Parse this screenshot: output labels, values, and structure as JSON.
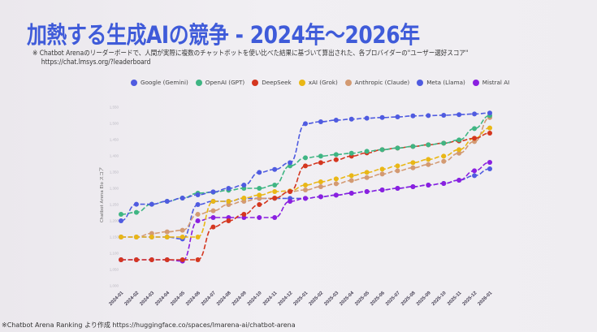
{
  "slide": {
    "title": "加熱する生成AIの競争 - 2024年〜2026年",
    "note_line1": "※ Chatbot Arenaのリーダーボードで、人間が実際に複数のチャットボットを使い比べた結果に基づいて算出された、各プロバイダーの\"ユーザー選好スコア\"",
    "note_line2": "https://chat.lmsys.org/?leaderboard",
    "footer": "※Chatbot Arena Ranking より作成 https://huggingface.co/spaces/lmarena-ai/chatbot-arena"
  },
  "chart_data": {
    "type": "line",
    "title": "",
    "xlabel": "",
    "ylabel": "Chatbot Arena Elo スコア",
    "ylim": [
      1000,
      1550
    ],
    "yticks": [
      1000,
      1050,
      1100,
      1150,
      1200,
      1250,
      1300,
      1350,
      1400,
      1450,
      1500,
      1550
    ],
    "ytick_labels": [
      "1,000",
      "1,050",
      "1,100",
      "1,150",
      "1,200",
      "1,250",
      "1,300",
      "1,350",
      "1,400",
      "1,450",
      "1,500",
      "1,550"
    ],
    "grid": false,
    "legend_position": "top",
    "categories": [
      "2024-01",
      "2024-02",
      "2024-03",
      "2024-04",
      "2024-05",
      "2024-06",
      "2024-07",
      "2024-08",
      "2024-09",
      "2024-10",
      "2024-11",
      "2024-12",
      "2025-01",
      "2025-02",
      "2025-03",
      "2025-04",
      "2025-05",
      "2025-06",
      "2025-07",
      "2025-08",
      "2025-09",
      "2025-10",
      "2025-11",
      "2025-12",
      "2026-01"
    ],
    "series": [
      {
        "name": "Google (Gemini)",
        "color": "#4f5be0",
        "values": [
          1199,
          1250,
          1250,
          1259,
          1269,
          1279,
          1288,
          1299,
          1309,
          1348,
          1357,
          1378,
          1498,
          1504,
          1509,
          1512,
          1515,
          1517,
          1519,
          1522,
          1523,
          1524,
          1526,
          1528,
          1531
        ]
      },
      {
        "name": "OpenAI (GPT)",
        "color": "#3fb583",
        "values": [
          1219,
          1225,
          1250,
          1259,
          1269,
          1284,
          1287,
          1293,
          1299,
          1299,
          1309,
          1368,
          1393,
          1398,
          1403,
          1407,
          1413,
          1418,
          1423,
          1428,
          1433,
          1438,
          1448,
          1483,
          1523
        ]
      },
      {
        "name": "DeepSeek",
        "color": "#d4361f",
        "values": [
          1079,
          1079,
          1079,
          1079,
          1079,
          1079,
          1180,
          1199,
          1219,
          1249,
          1269,
          1289,
          1368,
          1378,
          1387,
          1398,
          1408,
          1418,
          1423,
          1428,
          1433,
          1438,
          1445,
          1453,
          1469
        ]
      },
      {
        "name": "xAI (Grok)",
        "color": "#e9b716",
        "values": [
          1149,
          1149,
          1149,
          1149,
          1149,
          1149,
          1259,
          1259,
          1269,
          1278,
          1289,
          1291,
          1309,
          1319,
          1328,
          1338,
          1348,
          1358,
          1368,
          1378,
          1388,
          1398,
          1418,
          1453,
          1485
        ]
      },
      {
        "name": "Anthropic (Claude)",
        "color": "#d39a72",
        "values": [
          1149,
          1149,
          1160,
          1165,
          1170,
          1219,
          1230,
          1249,
          1259,
          1268,
          1268,
          1289,
          1294,
          1304,
          1313,
          1323,
          1332,
          1343,
          1353,
          1362,
          1372,
          1382,
          1407,
          1443,
          1517
        ]
      },
      {
        "name": "Meta (Llama)",
        "color": "#4f5be0",
        "values": [
          1149,
          1149,
          1149,
          1149,
          1143,
          1249,
          1259,
          1259,
          1268,
          1268,
          1268,
          1268,
          1268,
          1273,
          1278,
          1284,
          1289,
          1294,
          1299,
          1304,
          1309,
          1314,
          1324,
          1338,
          1359
        ]
      },
      {
        "name": "Mistral AI",
        "color": "#8a1fe0",
        "values": [
          1079,
          1079,
          1079,
          1079,
          1075,
          1199,
          1209,
          1209,
          1209,
          1209,
          1209,
          1259,
          1268,
          1273,
          1278,
          1284,
          1289,
          1294,
          1299,
          1304,
          1309,
          1314,
          1324,
          1353,
          1379
        ]
      }
    ]
  },
  "legend": {
    "items": [
      {
        "label": "Google (Gemini)",
        "color": "#4f5be0"
      },
      {
        "label": "OpenAI (GPT)",
        "color": "#3fb583"
      },
      {
        "label": "DeepSeek",
        "color": "#d4361f"
      },
      {
        "label": "xAI (Grok)",
        "color": "#e9b716"
      },
      {
        "label": "Anthropic (Claude)",
        "color": "#d39a72"
      },
      {
        "label": "Meta (Llama)",
        "color": "#4f5be0"
      },
      {
        "label": "Mistral AI",
        "color": "#8a1fe0"
      }
    ]
  }
}
